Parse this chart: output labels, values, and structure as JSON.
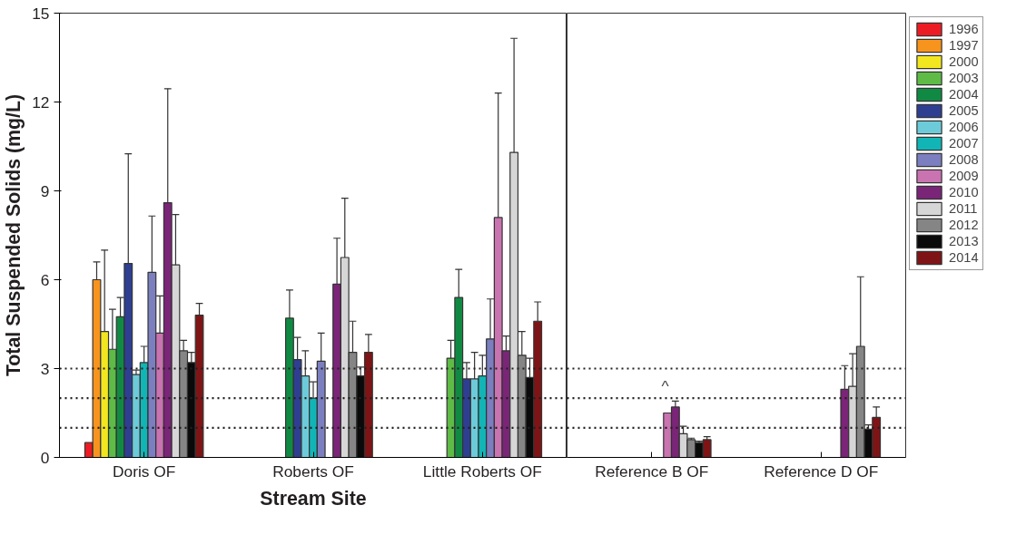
{
  "chart_data": [
    {
      "type": "bar",
      "xlabel": "Stream Site",
      "ylabel": "Total Suspended Solids (mg/L)",
      "categories": [
        "Doris OF",
        "Roberts OF",
        "Little Roberts OF"
      ],
      "ylim": [
        0,
        15
      ],
      "yticks": [
        0,
        3,
        6,
        9,
        12,
        15
      ],
      "grid": false,
      "legend": "top right",
      "series": [
        {
          "name": "1996",
          "color": "#ed1c24",
          "values": [
            0.5,
            null,
            null
          ],
          "errors": [
            null,
            null,
            null
          ]
        },
        {
          "name": "1997",
          "color": "#f7941d",
          "values": [
            6.0,
            null,
            null
          ],
          "errors": [
            [
              6.0,
              6.6
            ],
            null,
            null
          ]
        },
        {
          "name": "2000",
          "color": "#f2e620",
          "values": [
            4.25,
            null,
            null
          ],
          "errors": [
            [
              4.25,
              7.0
            ],
            null,
            null
          ]
        },
        {
          "name": "2003",
          "color": "#5dbb46",
          "values": [
            3.65,
            null,
            3.35
          ],
          "errors": [
            [
              3.65,
              5.0
            ],
            null,
            [
              3.35,
              3.95
            ]
          ]
        },
        {
          "name": "2004",
          "color": "#108a43",
          "values": [
            4.75,
            4.7,
            5.4
          ],
          "errors": [
            [
              4.75,
              5.4
            ],
            [
              4.7,
              5.65
            ],
            [
              5.4,
              6.35
            ]
          ]
        },
        {
          "name": "2005",
          "color": "#2e3f92",
          "values": [
            6.55,
            3.3,
            2.65
          ],
          "errors": [
            [
              6.55,
              10.25
            ],
            [
              3.3,
              4.05
            ],
            [
              2.65,
              3.2
            ]
          ]
        },
        {
          "name": "2006",
          "color": "#6dcbd9",
          "values": [
            2.8,
            2.75,
            2.65
          ],
          "errors": [
            [
              2.8,
              2.95
            ],
            [
              2.75,
              3.6
            ],
            [
              2.65,
              3.55
            ]
          ]
        },
        {
          "name": "2007",
          "color": "#12b5b5",
          "values": [
            3.2,
            2.0,
            2.75
          ],
          "errors": [
            [
              3.2,
              3.75
            ],
            [
              2.0,
              2.55
            ],
            [
              2.75,
              3.45
            ]
          ]
        },
        {
          "name": "2008",
          "color": "#7b7fbf",
          "values": [
            6.25,
            3.25,
            4.0
          ],
          "errors": [
            [
              6.25,
              8.15
            ],
            [
              3.25,
              4.2
            ],
            [
              4.0,
              5.35
            ]
          ]
        },
        {
          "name": "2009",
          "color": "#c973b0",
          "values": [
            4.2,
            null,
            8.1
          ],
          "errors": [
            [
              4.2,
              5.45
            ],
            null,
            [
              8.1,
              12.3
            ]
          ]
        },
        {
          "name": "2010",
          "color": "#7a2577",
          "values": [
            8.6,
            5.85,
            3.6
          ],
          "errors": [
            [
              8.6,
              12.45
            ],
            [
              5.85,
              7.4
            ],
            [
              3.6,
              4.1
            ]
          ]
        },
        {
          "name": "2011",
          "color": "#d6d6d6",
          "values": [
            6.5,
            6.75,
            10.3
          ],
          "errors": [
            [
              6.5,
              8.2
            ],
            [
              6.75,
              8.75
            ],
            [
              10.3,
              14.15
            ]
          ]
        },
        {
          "name": "2012",
          "color": "#858585",
          "values": [
            3.6,
            3.55,
            3.45
          ],
          "errors": [
            [
              3.6,
              3.95
            ],
            [
              3.55,
              4.6
            ],
            [
              3.45,
              4.25
            ]
          ]
        },
        {
          "name": "2013",
          "color": "#0a0a0a",
          "values": [
            3.2,
            2.75,
            2.7
          ],
          "errors": [
            [
              3.2,
              3.55
            ],
            [
              2.75,
              3.05
            ],
            [
              2.7,
              3.35
            ]
          ]
        },
        {
          "name": "2014",
          "color": "#7f1416",
          "values": [
            4.8,
            3.55,
            4.6
          ],
          "errors": [
            [
              4.8,
              5.2
            ],
            [
              3.55,
              4.15
            ],
            [
              4.6,
              5.25
            ]
          ]
        }
      ],
      "ref_lines": [
        {
          "axis": "y",
          "value": 1,
          "line_style": "dotted"
        },
        {
          "axis": "y",
          "value": 2,
          "line_style": "dotted"
        },
        {
          "axis": "y",
          "value": 3,
          "line_style": "dotted"
        }
      ]
    },
    {
      "type": "bar",
      "categories": [
        "Reference B OF",
        "Reference D OF"
      ],
      "ylim": [
        0,
        15
      ],
      "yticks": [
        0,
        3,
        6,
        9,
        12,
        15
      ],
      "grid": false,
      "tick_labels": "x",
      "series": [
        {
          "values": [
            null,
            null
          ]
        },
        {
          "values": [
            null,
            null
          ]
        },
        {
          "values": [
            null,
            null
          ]
        },
        {
          "values": [
            null,
            null
          ]
        },
        {
          "values": [
            null,
            null
          ]
        },
        {
          "values": [
            null,
            null
          ]
        },
        {
          "values": [
            null,
            null
          ]
        },
        {
          "values": [
            null,
            null
          ]
        },
        {
          "values": [
            null,
            null
          ]
        },
        {
          "color": "#c973b0",
          "values": [
            1.5,
            null
          ]
        },
        {
          "color": "#7a2577",
          "values": [
            1.7,
            2.3
          ],
          "errors": [
            [
              1.7,
              1.9
            ],
            [
              2.3,
              3.1
            ]
          ]
        },
        {
          "color": "#d6d6d6",
          "values": [
            0.8,
            2.4
          ],
          "errors": [
            [
              0.8,
              1.05
            ],
            [
              2.4,
              3.5
            ]
          ]
        },
        {
          "color": "#858585",
          "values": [
            0.6,
            3.75
          ],
          "errors": [
            [
              0.6,
              0.65
            ],
            [
              3.75,
              6.1
            ]
          ]
        },
        {
          "color": "#0a0a0a",
          "values": [
            0.5,
            0.95
          ],
          "errors": [
            [
              0.5,
              0.55
            ],
            [
              0.95,
              1.1
            ]
          ]
        },
        {
          "color": "#7f1416",
          "values": [
            0.6,
            1.35
          ],
          "errors": [
            [
              0.6,
              0.7
            ],
            [
              1.35,
              1.7
            ]
          ]
        }
      ],
      "ref_lines": [
        {
          "axis": "y",
          "value": 1,
          "line_style": "dotted"
        },
        {
          "axis": "y",
          "value": 2,
          "line_style": "dotted"
        },
        {
          "axis": "y",
          "value": 3,
          "line_style": "dotted"
        }
      ],
      "annotations": [
        "^"
      ]
    }
  ]
}
